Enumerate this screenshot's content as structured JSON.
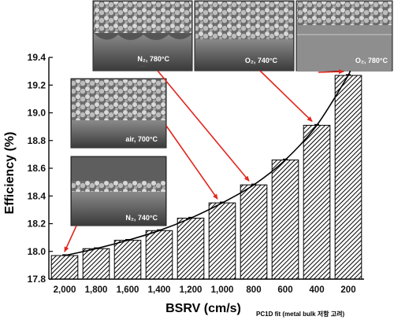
{
  "chart_data": {
    "type": "bar",
    "xlabel": "BSRV (cm/s)",
    "ylabel": "Efficiency (%)",
    "categories": [
      "2,000",
      "1,800",
      "1,600",
      "1,400",
      "1,200",
      "1,000",
      "800",
      "600",
      "400",
      "200"
    ],
    "values": [
      17.97,
      18.02,
      18.08,
      18.15,
      18.24,
      18.35,
      18.48,
      18.66,
      18.91,
      19.27
    ],
    "ylim": [
      17.8,
      19.4
    ],
    "yticks": [
      "17.8",
      "18.0",
      "18.2",
      "18.4",
      "18.6",
      "18.8",
      "19.0",
      "19.2",
      "19.4"
    ],
    "bar_pattern": "diagonal-hatch",
    "fit_curve": true,
    "note": "PC1D fit (metal bulk 저항 고려)",
    "grid": false,
    "sem_insets": [
      {
        "label": "N₂, 780°C",
        "bar_index": 7
      },
      {
        "label": "O₂, 740°C",
        "bar_index": 8
      },
      {
        "label": "O₂, 780°C",
        "bar_index": 9
      },
      {
        "label": "air, 700°C",
        "bar_index": 6
      },
      {
        "label": "N₂, 740°C",
        "bar_index": 0
      }
    ],
    "colors": {
      "arrow": "#e4251c",
      "bar_fill": "#ffffff",
      "axis": "#000000"
    }
  }
}
